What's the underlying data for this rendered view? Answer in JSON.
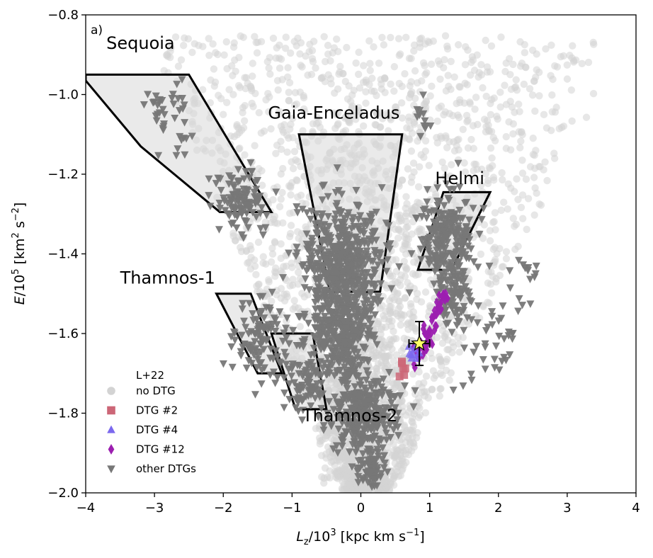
{
  "chart_data": {
    "type": "scatter",
    "panel_label": "a)",
    "xlabel": "L_z/10^3 [kpc km s^-1]",
    "xlabel_parts": {
      "symbol": "L",
      "sub": "z",
      "mid": "/10",
      "sup": "3",
      "rest": " [kpc km s",
      "unit_sup": "−1",
      "close": "]"
    },
    "ylabel": "E/10^5 [km^2 s^-2]",
    "ylabel_parts": {
      "symbol": "E",
      "mid": "/10",
      "sup": "5",
      "rest1": " [km",
      "sup2": "2",
      "rest2": " s",
      "sup3": "−2",
      "close": "]"
    },
    "xlim": [
      -4,
      4
    ],
    "ylim": [
      -2.0,
      -0.8
    ],
    "xticks": [
      -4,
      -3,
      -2,
      -1,
      0,
      1,
      2,
      3,
      4
    ],
    "xtick_labels": [
      "−4",
      "−3",
      "−2",
      "−1",
      "0",
      "1",
      "2",
      "3",
      "4"
    ],
    "yticks": [
      -2.0,
      -1.8,
      -1.6,
      -1.4,
      -1.2,
      -1.0,
      -0.8
    ],
    "ytick_labels": [
      "−2.0",
      "−1.8",
      "−1.6",
      "−1.4",
      "−1.2",
      "−1.0",
      "−0.8"
    ],
    "legend": {
      "title": "L+22",
      "placement": "lower-left",
      "entries": [
        {
          "label": "no DTG",
          "marker": "circle",
          "color": "#d3d3d3"
        },
        {
          "label": "DTG #2",
          "marker": "square",
          "color": "#cc6677"
        },
        {
          "label": "DTG #4",
          "marker": "triangle-up",
          "color": "#7b68ee"
        },
        {
          "label": "DTG #12",
          "marker": "diamond",
          "color": "#9c1fb0"
        },
        {
          "label": "other DTGs",
          "marker": "triangle-down",
          "color": "#777777"
        }
      ]
    },
    "regions": [
      {
        "name": "Sequoia",
        "label_pos": [
          -3.7,
          -0.885
        ],
        "polygon": [
          [
            -4.0,
            -0.95
          ],
          [
            -2.5,
            -0.95
          ],
          [
            -1.3,
            -1.295
          ],
          [
            -2.05,
            -1.295
          ],
          [
            -3.2,
            -1.13
          ],
          [
            -4.0,
            -0.965
          ]
        ]
      },
      {
        "name": "Gaia-Enceladus",
        "label_pos": [
          -1.35,
          -1.06
        ],
        "polygon": [
          [
            -0.9,
            -1.1
          ],
          [
            0.6,
            -1.1
          ],
          [
            0.28,
            -1.495
          ],
          [
            -0.45,
            -1.495
          ]
        ]
      },
      {
        "name": "Helmi",
        "label_pos": [
          1.08,
          -1.225
        ],
        "polygon": [
          [
            1.2,
            -1.245
          ],
          [
            1.88,
            -1.245
          ],
          [
            1.32,
            -1.44
          ],
          [
            0.83,
            -1.44
          ]
        ]
      },
      {
        "name": "Thamnos-1",
        "label_pos": [
          -3.5,
          -1.475
        ],
        "polygon": [
          [
            -2.1,
            -1.5
          ],
          [
            -1.6,
            -1.5
          ],
          [
            -1.15,
            -1.7
          ],
          [
            -1.5,
            -1.7
          ]
        ]
      },
      {
        "name": "Thamnos-2",
        "label_pos": [
          -0.85,
          -1.82
        ],
        "polygon": [
          [
            -1.3,
            -1.6
          ],
          [
            -0.7,
            -1.6
          ],
          [
            -0.5,
            -1.79
          ],
          [
            -0.95,
            -1.79
          ]
        ]
      }
    ],
    "point_groups": [
      {
        "name": "no DTG",
        "marker": "circle",
        "color": "#d3d3d3",
        "opacity": 0.55,
        "n": 2600,
        "envelope": "V-shaped distribution spanning Lz -3.5 to 3.3, E -2.0 to -0.85, densest near Lz≈0, E≈-1.5 to -1.95"
      },
      {
        "name": "other DTGs",
        "marker": "triangle-down",
        "color": "#777777",
        "opacity": 0.95,
        "clusters": [
          {
            "cx": -0.25,
            "cy": -1.42,
            "sx": 0.28,
            "sy": 0.08,
            "n": 520
          },
          {
            "cx": -0.35,
            "cy": -1.58,
            "sx": 0.22,
            "sy": 0.05,
            "n": 250
          },
          {
            "cx": 0.05,
            "cy": -1.8,
            "sx": 0.25,
            "sy": 0.05,
            "n": 300
          },
          {
            "cx": 0.15,
            "cy": -1.94,
            "sx": 0.1,
            "sy": 0.025,
            "n": 60
          },
          {
            "cx": 1.25,
            "cy": -1.36,
            "sx": 0.2,
            "sy": 0.06,
            "n": 220
          },
          {
            "cx": 1.35,
            "cy": -1.5,
            "sx": 0.12,
            "sy": 0.05,
            "n": 80
          },
          {
            "cx": -1.75,
            "cy": -1.25,
            "sx": 0.2,
            "sy": 0.03,
            "n": 70
          },
          {
            "cx": -1.7,
            "cy": -1.3,
            "sx": 0.2,
            "sy": 0.03,
            "n": 40
          },
          {
            "cx": -2.85,
            "cy": -1.02,
            "sx": 0.15,
            "sy": 0.025,
            "n": 25
          },
          {
            "cx": -2.7,
            "cy": -1.1,
            "sx": 0.12,
            "sy": 0.03,
            "n": 15
          },
          {
            "cx": -1.45,
            "cy": -1.62,
            "sx": 0.22,
            "sy": 0.05,
            "n": 110
          },
          {
            "cx": -0.8,
            "cy": -1.72,
            "sx": 0.15,
            "sy": 0.04,
            "n": 80
          },
          {
            "cx": -0.2,
            "cy": -1.65,
            "sx": 0.15,
            "sy": 0.04,
            "n": 70
          },
          {
            "cx": 0.9,
            "cy": -1.05,
            "sx": 0.05,
            "sy": 0.04,
            "n": 12
          },
          {
            "cx": 1.9,
            "cy": -1.6,
            "sx": 0.25,
            "sy": 0.06,
            "n": 40
          },
          {
            "cx": 2.35,
            "cy": -1.45,
            "sx": 0.15,
            "sy": 0.05,
            "n": 15
          }
        ]
      },
      {
        "name": "DTG #12",
        "marker": "diamond",
        "color": "#9c1fb0",
        "opacity": 0.95,
        "cluster": {
          "cx": 1.05,
          "cy": -1.56,
          "along": [
            0.78,
            -1.68,
            1.25,
            -1.5
          ],
          "n": 60
        }
      },
      {
        "name": "DTG #4",
        "marker": "triangle-up",
        "color": "#7b68ee",
        "opacity": 0.85,
        "cluster": {
          "cx": 0.76,
          "cy": -1.655,
          "sx": 0.06,
          "sy": 0.015,
          "n": 8
        }
      },
      {
        "name": "DTG #2",
        "marker": "square",
        "color": "#cc6677",
        "opacity": 0.85,
        "cluster": {
          "cx": 0.58,
          "cy": -1.685,
          "sx": 0.03,
          "sy": 0.012,
          "n": 6
        }
      }
    ],
    "highlight_star": {
      "x": 0.85,
      "y": -1.625,
      "xerr": 0.15,
      "yerr": 0.055,
      "color": "#ffff66"
    }
  }
}
